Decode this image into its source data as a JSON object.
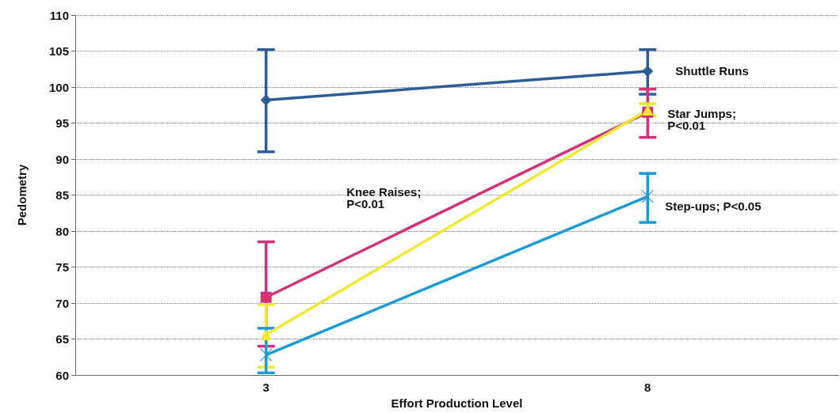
{
  "chart_data": {
    "type": "line",
    "xlabel": "Effort Production Level",
    "ylabel": "Pedometry",
    "categories": [
      "3",
      "8"
    ],
    "series": [
      {
        "name": "Shuttle Runs",
        "color": "#2d5d96",
        "marker": "diamond",
        "values": [
          98.2,
          102.2
        ],
        "errors": [
          [
            91,
            105.2
          ],
          [
            99,
            105.2
          ]
        ]
      },
      {
        "name": "Knee Raises; P<0.01",
        "color": "#d4317a",
        "marker": "square",
        "values": [
          70.8,
          96.5
        ],
        "errors": [
          [
            64,
            78.5
          ],
          [
            93,
            99.7
          ]
        ]
      },
      {
        "name": "Star Jumps; P<0.01",
        "color": "#f2e830",
        "marker": "triangle",
        "values": [
          65.6,
          96.8
        ],
        "errors": [
          [
            61.1,
            69.8
          ],
          [
            96,
            97.7
          ]
        ]
      },
      {
        "name": "Step-ups; P<0.05",
        "color": "#1c9ad6",
        "marker": "cross",
        "values": [
          62.8,
          84.8
        ],
        "errors": [
          [
            60.3,
            66.5
          ],
          [
            81.2,
            88
          ]
        ]
      }
    ],
    "ylim": [
      60,
      110
    ],
    "yticks": [
      60,
      65,
      70,
      75,
      80,
      85,
      90,
      95,
      100,
      105,
      110
    ],
    "grid": "y",
    "legend": false,
    "line_style": "solid"
  }
}
